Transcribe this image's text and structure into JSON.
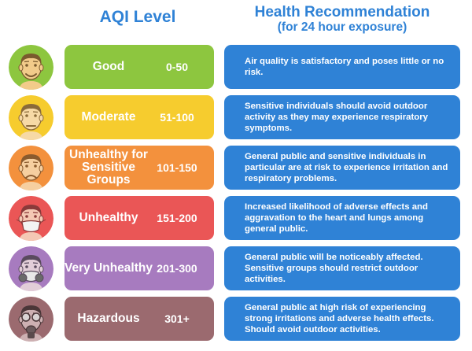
{
  "header": {
    "aqi_title": "AQI Level",
    "health_title_line1": "Health Recommendation",
    "health_title_line2": "(for 24 hour exposure)"
  },
  "levels": [
    {
      "name": "Good",
      "range": "0-50",
      "color": "#8dc63f",
      "face_bg": "#8dc63f",
      "face_skin": "#f2cb8a",
      "face_dark": "#7a5a2e",
      "icon": "happy-face-icon",
      "recommendation": "Air quality is satisfactory and poses little or no risk."
    },
    {
      "name": "Moderate",
      "range": "51-100",
      "color": "#f6cc2e",
      "face_bg": "#f6cc2e",
      "face_skin": "#f6d9a6",
      "face_dark": "#8a6a3a",
      "icon": "neutral-face-icon",
      "recommendation": "Sensitive individuals should avoid outdoor activity as they may experience respiratory symptoms."
    },
    {
      "name": "Unhealthy for Sensitive Groups",
      "range": "101-150",
      "color": "#f3913d",
      "face_bg": "#f3913d",
      "face_skin": "#f6cfa0",
      "face_dark": "#8a5a2e",
      "icon": "sad-face-icon",
      "recommendation": "General public and sensitive individuals in particular are at risk to experience irritation and respiratory problems."
    },
    {
      "name": "Unhealthy",
      "range": "151-200",
      "color": "#ea5656",
      "face_bg": "#ea5656",
      "face_skin": "#f4c8b4",
      "face_dark": "#8a3a3a",
      "icon": "face-with-mask-icon",
      "recommendation": "Increased likelihood of adverse effects and aggravation to the heart and lungs among general public."
    },
    {
      "name": "Very Unhealthy",
      "range": "201-300",
      "color": "#a77bbf",
      "face_bg": "#a77bbf",
      "face_skin": "#e2cdd8",
      "face_dark": "#5a4a5e",
      "icon": "face-with-respirator-icon",
      "recommendation": "General public will be noticeably affected. Sensitive groups should restrict outdoor activities."
    },
    {
      "name": "Hazardous",
      "range": "301+",
      "color": "#9b6a6f",
      "face_bg": "#9b6a6f",
      "face_skin": "#cdb0b2",
      "face_dark": "#4a3638",
      "icon": "gas-mask-icon",
      "recommendation": "General public at high risk of experiencing strong irritations and adverse health effects. Should avoid outdoor activities."
    }
  ]
}
